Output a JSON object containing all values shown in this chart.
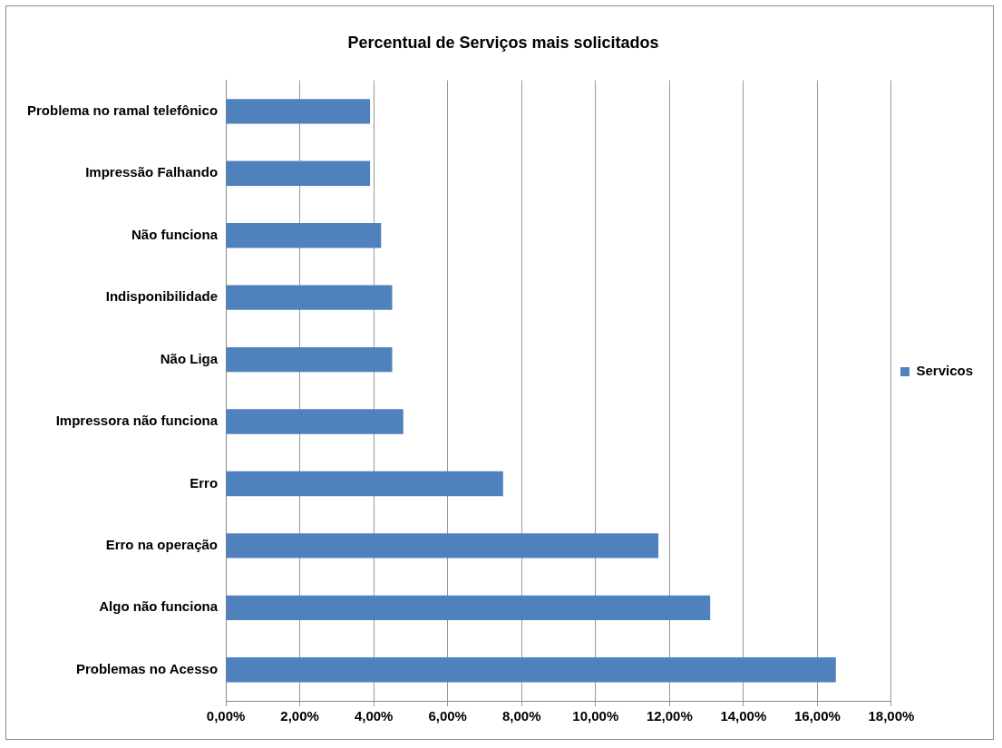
{
  "chart_data": {
    "type": "bar",
    "orientation": "horizontal",
    "title": "Percentual de Serviços mais solicitados",
    "categories": [
      "Problema no ramal telefônico",
      "Impressão Falhando",
      "Não funciona",
      "Indisponibilidade",
      "Não Liga",
      "Impressora não funciona",
      "Erro",
      "Erro na operação",
      "Algo não funciona",
      "Problemas no Acesso"
    ],
    "series": [
      {
        "name": "Servicos",
        "color": "#4f81bd",
        "values": [
          3.9,
          3.9,
          4.2,
          4.5,
          4.5,
          4.8,
          7.5,
          11.7,
          13.1,
          16.5
        ]
      }
    ],
    "xlim": [
      0,
      18
    ],
    "xticks": [
      {
        "value": 0,
        "label": "0,00%"
      },
      {
        "value": 2,
        "label": "2,00%"
      },
      {
        "value": 4,
        "label": "4,00%"
      },
      {
        "value": 6,
        "label": "6,00%"
      },
      {
        "value": 8,
        "label": "8,00%"
      },
      {
        "value": 10,
        "label": "10,00%"
      },
      {
        "value": 12,
        "label": "12,00%"
      },
      {
        "value": 14,
        "label": "14,00%"
      },
      {
        "value": 16,
        "label": "16,00%"
      },
      {
        "value": 18,
        "label": "18,00%"
      }
    ],
    "grid": "x",
    "legend": "right"
  }
}
